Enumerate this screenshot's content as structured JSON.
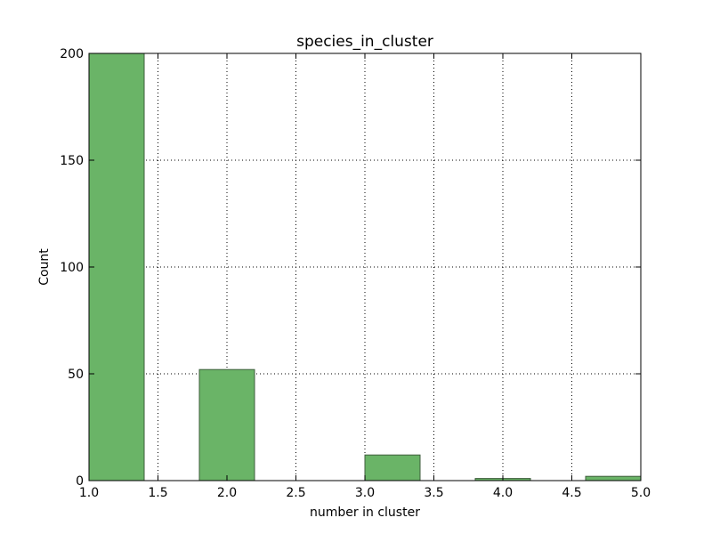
{
  "chart_data": {
    "type": "bar",
    "title": "species_in_cluster",
    "xlabel": "number in cluster",
    "ylabel": "Count",
    "xlim": [
      1.0,
      5.0
    ],
    "ylim": [
      0,
      200
    ],
    "grid": true,
    "bar_color": "#6ab467",
    "bar_edge_color": "#3f5e3d",
    "bins": [
      {
        "x0": 1.0,
        "x1": 1.4,
        "count": 200
      },
      {
        "x0": 1.8,
        "x1": 2.2,
        "count": 52
      },
      {
        "x0": 3.0,
        "x1": 3.4,
        "count": 12
      },
      {
        "x0": 3.8,
        "x1": 4.2,
        "count": 1
      },
      {
        "x0": 4.6,
        "x1": 5.0,
        "count": 2
      }
    ],
    "x_ticks": [
      {
        "value": 1.0,
        "label": "1.0"
      },
      {
        "value": 1.5,
        "label": "1.5"
      },
      {
        "value": 2.0,
        "label": "2.0"
      },
      {
        "value": 2.5,
        "label": "2.5"
      },
      {
        "value": 3.0,
        "label": "3.0"
      },
      {
        "value": 3.5,
        "label": "3.5"
      },
      {
        "value": 4.0,
        "label": "4.0"
      },
      {
        "value": 4.5,
        "label": "4.5"
      },
      {
        "value": 5.0,
        "label": "5.0"
      }
    ],
    "y_ticks": [
      {
        "value": 0,
        "label": "0"
      },
      {
        "value": 50,
        "label": "50"
      },
      {
        "value": 100,
        "label": "100"
      },
      {
        "value": 150,
        "label": "150"
      },
      {
        "value": 200,
        "label": "200"
      }
    ]
  }
}
